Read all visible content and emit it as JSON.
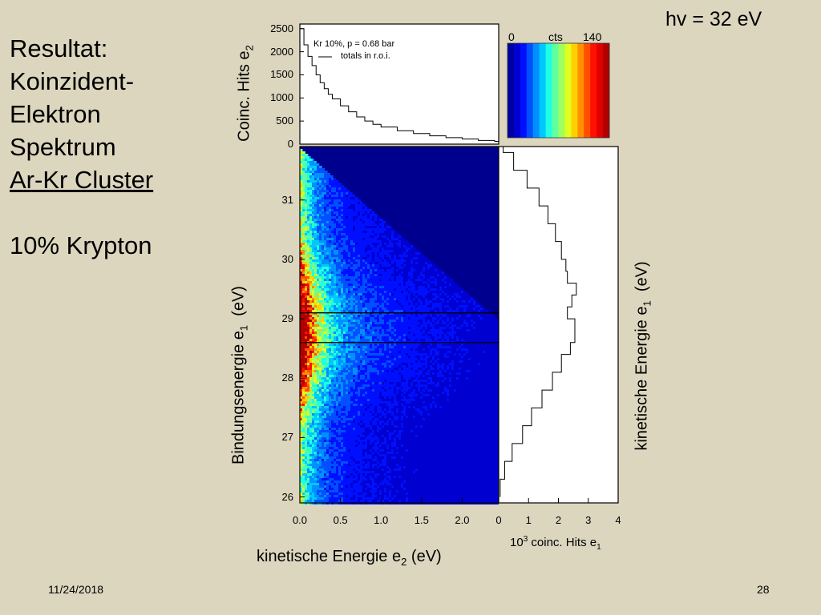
{
  "slide": {
    "title_lines": [
      "Resultat:",
      "Koinzident-",
      "Elektron",
      "Spektrum"
    ],
    "title_underlined": "Ar-Kr Cluster",
    "subtitle": "10% Krypton",
    "photon_energy": "hv = 32 eV",
    "date": "11/24/2018",
    "page": "28"
  },
  "colors": {
    "background": "#dcd6bf",
    "map_background": "#00008f",
    "colormap": [
      "#0000a0",
      "#0000d0",
      "#0010ff",
      "#0050ff",
      "#0090ff",
      "#00c8ff",
      "#20ffe0",
      "#60ff9f",
      "#a0ff60",
      "#e0ff20",
      "#ffd000",
      "#ff9000",
      "#ff5000",
      "#ff1000",
      "#e00000",
      "#b00000"
    ]
  },
  "labels": {
    "top_ylabel": "Coinc. Hits e",
    "top_ylabel_sub": "2",
    "main_ylabel": "Bindungsenergie e",
    "main_ylabel_sub": "1",
    "main_ylabel_unit": "(eV)",
    "main_xlabel": "kinetische Energie e",
    "main_xlabel_sub": "2",
    "main_xlabel_unit": "(eV)",
    "right_ylabel": "kinetische Energie e",
    "right_ylabel_sub": "1",
    "right_ylabel_unit": "(eV)",
    "right_xlabel_pre": "10",
    "right_xlabel_sup": "3",
    "right_xlabel_post": " coinc. Hits e",
    "right_xlabel_sub": "1",
    "legend_line1": "Kr 10%, p = 0.68 bar",
    "legend_line2": "totals in r.o.i.",
    "colorbar_min": "0",
    "colorbar_unit": "cts",
    "colorbar_max": "140"
  },
  "chart_data": [
    {
      "type": "heatmap",
      "name": "coincidence-map",
      "xlim": [
        0.0,
        2.45
      ],
      "ylim": [
        25.9,
        31.9
      ],
      "xticks": [
        "0.0",
        "0.5",
        "1.0",
        "1.5",
        "2.0"
      ],
      "yticks": [
        "26",
        "27",
        "28",
        "29",
        "30",
        "31"
      ],
      "roi_lines_y": [
        29.1,
        28.6
      ],
      "diagonal": {
        "x0": 0.0,
        "y0": 31.9,
        "x1": 2.45,
        "y1": 29.0
      },
      "intensity_ridge": {
        "x_peak": 0.1,
        "y_peak": 28.8,
        "max_counts": 140
      }
    },
    {
      "type": "line",
      "name": "top-projection",
      "ylim": [
        0,
        2600
      ],
      "yticks": [
        "0",
        "500",
        "1000",
        "1500",
        "2000",
        "2500"
      ],
      "x": [
        0.0,
        0.05,
        0.1,
        0.15,
        0.2,
        0.25,
        0.3,
        0.35,
        0.4,
        0.5,
        0.6,
        0.7,
        0.8,
        0.9,
        1.0,
        1.2,
        1.4,
        1.6,
        1.8,
        2.0,
        2.2,
        2.4
      ],
      "values": [
        2500,
        2150,
        1900,
        1700,
        1500,
        1330,
        1200,
        1080,
        980,
        830,
        700,
        590,
        500,
        430,
        370,
        290,
        230,
        180,
        140,
        110,
        80,
        60
      ]
    },
    {
      "type": "line",
      "name": "right-projection",
      "xlim": [
        0,
        4
      ],
      "xticks": [
        "0",
        "1",
        "2",
        "3",
        "4"
      ],
      "y": [
        26.0,
        26.3,
        26.6,
        26.9,
        27.2,
        27.5,
        27.8,
        28.1,
        28.4,
        28.6,
        28.8,
        29.0,
        29.2,
        29.4,
        29.6,
        29.8,
        30.0,
        30.3,
        30.6,
        30.9,
        31.2,
        31.5,
        31.8
      ],
      "values": [
        0.05,
        0.2,
        0.45,
        0.8,
        1.1,
        1.45,
        1.8,
        2.1,
        2.4,
        2.55,
        2.55,
        2.3,
        2.45,
        2.6,
        2.3,
        2.25,
        2.1,
        1.9,
        1.65,
        1.35,
        0.95,
        0.5,
        0.15
      ]
    }
  ]
}
